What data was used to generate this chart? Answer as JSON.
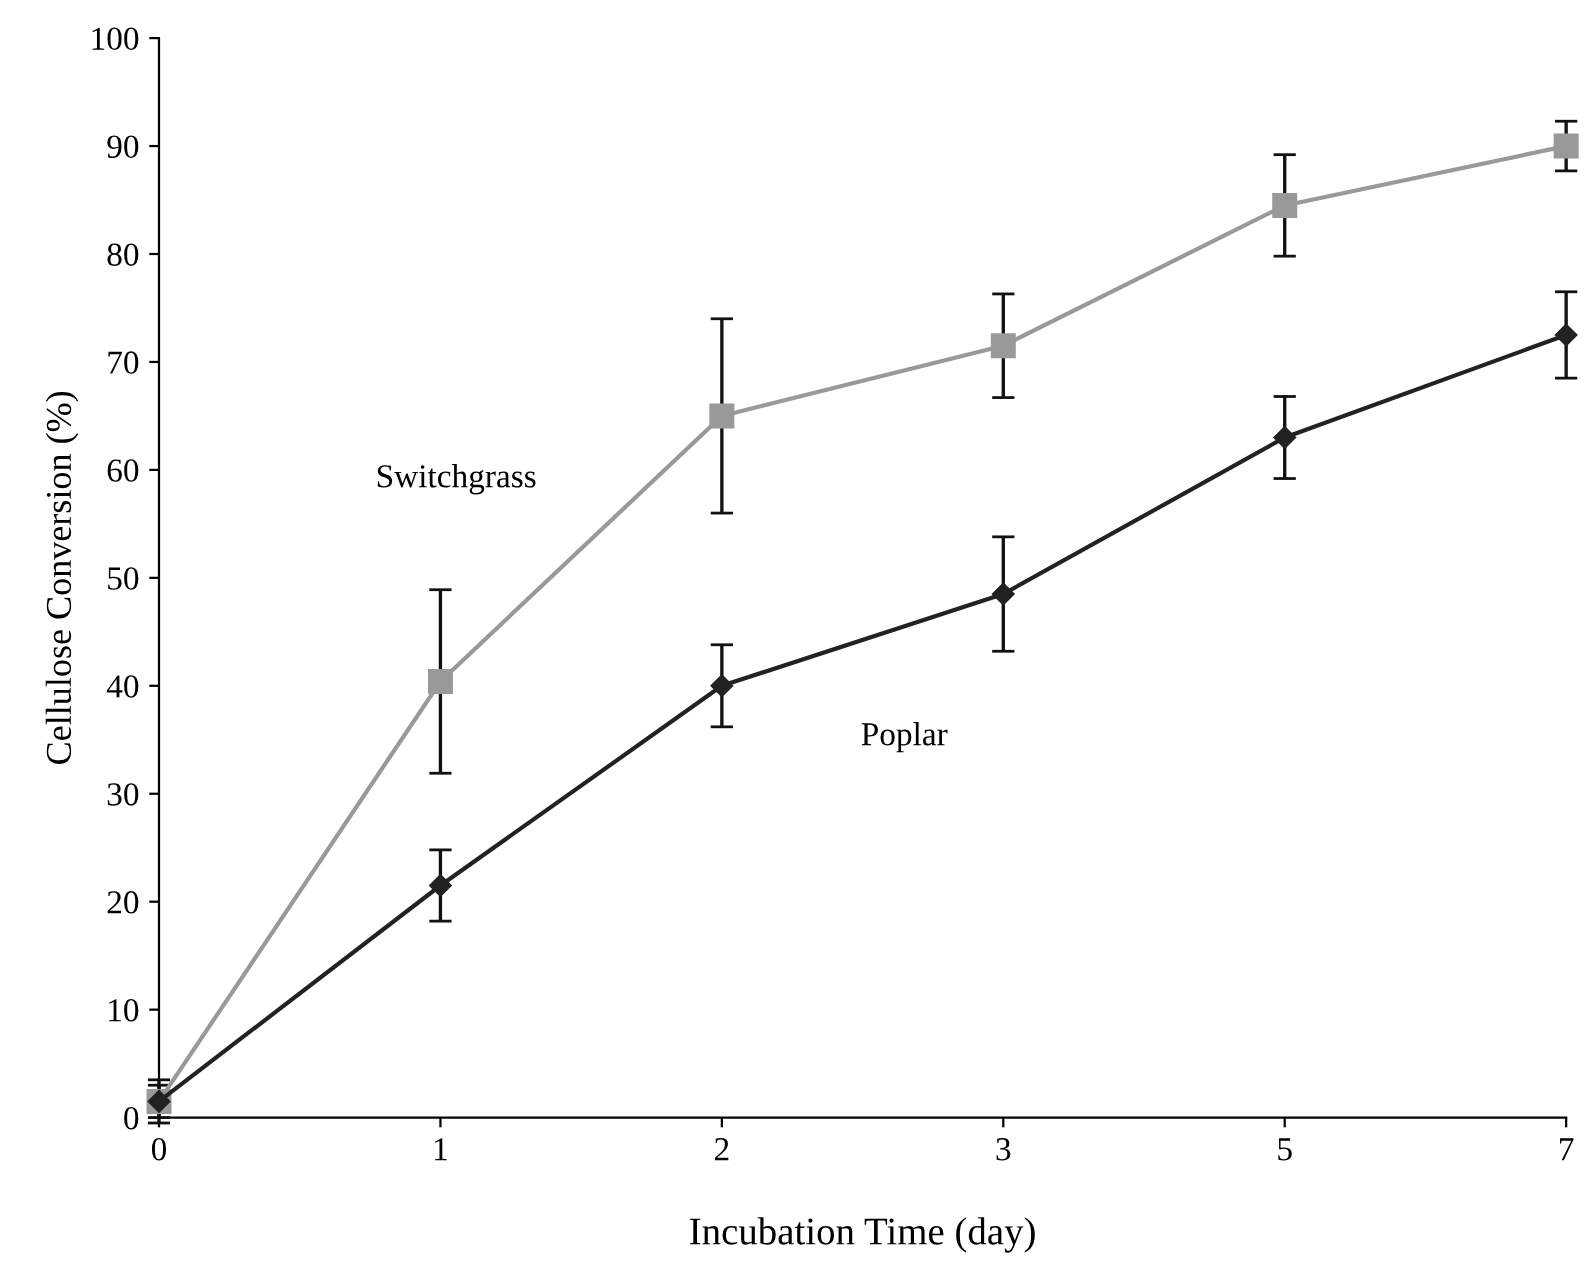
{
  "chart_data": {
    "type": "line",
    "xlabel": "Incubation Time (day)",
    "ylabel": "Cellulose Conversion (%)",
    "categories": [
      "0",
      "1",
      "2",
      "3",
      "5",
      "7"
    ],
    "series": [
      {
        "name": "Switchgrass",
        "color": "#999999",
        "marker": "square",
        "values": [
          1.5,
          40.4,
          65,
          71.5,
          84.5,
          90
        ],
        "errors": [
          2,
          8.5,
          9,
          4.8,
          4.7,
          2.3
        ]
      },
      {
        "name": "Poplar",
        "color": "#222222",
        "marker": "diamond",
        "values": [
          1.5,
          21.5,
          40,
          48.5,
          63,
          72.5
        ],
        "errors": [
          1.5,
          3.3,
          3.8,
          5.3,
          3.8,
          4
        ]
      }
    ],
    "ylim": [
      0,
      100
    ],
    "yticks": [
      0,
      10,
      20,
      30,
      40,
      50,
      60,
      70,
      80,
      90,
      100
    ],
    "grid": false,
    "legend": false
  }
}
